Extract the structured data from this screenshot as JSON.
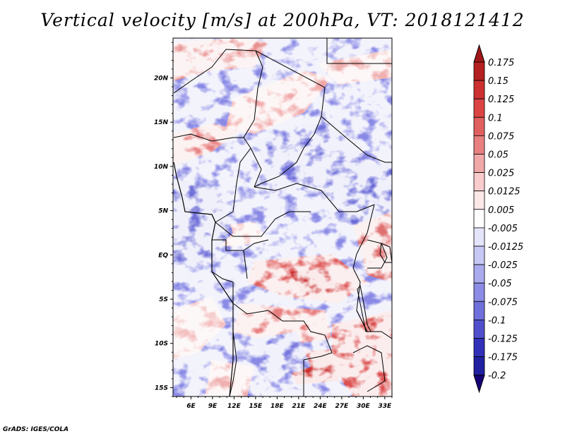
{
  "title": "Vertical velocity [m/s] at 200hPa, VT: 2018121412",
  "credit": "GrADS: IGES/COLA",
  "map": {
    "variable": "Vertical velocity",
    "units": "m/s",
    "level": "200hPa",
    "valid_time": "2018121412",
    "lon_range": [
      3.5,
      34
    ],
    "lat_range": [
      -16,
      24.5
    ],
    "lon_tick_labels": [
      "6E",
      "9E",
      "12E",
      "15E",
      "18E",
      "21E",
      "24E",
      "27E",
      "30E",
      "33E"
    ],
    "lon_tick_values": [
      6,
      9,
      12,
      15,
      18,
      21,
      24,
      27,
      30,
      33
    ],
    "lat_tick_labels": [
      "20N",
      "15N",
      "10N",
      "5N",
      "EQ",
      "5S",
      "10S",
      "15S"
    ],
    "lat_tick_values": [
      20,
      15,
      10,
      5,
      0,
      -5,
      -10,
      -15
    ]
  },
  "colorbar": {
    "labels": [
      "0.175",
      "0.15",
      "0.125",
      "0.1",
      "0.075",
      "0.05",
      "0.025",
      "0.0125",
      "0.005",
      "-0.005",
      "-0.0125",
      "-0.025",
      "-0.05",
      "-0.075",
      "-0.1",
      "-0.125",
      "-0.175",
      "-0.2"
    ],
    "colors": [
      "#a01818",
      "#b42020",
      "#cc3030",
      "#dc4444",
      "#e06060",
      "#e88080",
      "#f0a8a8",
      "#f8cccc",
      "#fde8e8",
      "#ffffff",
      "#e4e4fa",
      "#c8c8f4",
      "#aaaaee",
      "#8c8ce6",
      "#7070dc",
      "#5050cc",
      "#3030b8",
      "#2020a0",
      "#160078"
    ],
    "top_arrow_color": "#a01818",
    "bottom_arrow_color": "#160078"
  }
}
